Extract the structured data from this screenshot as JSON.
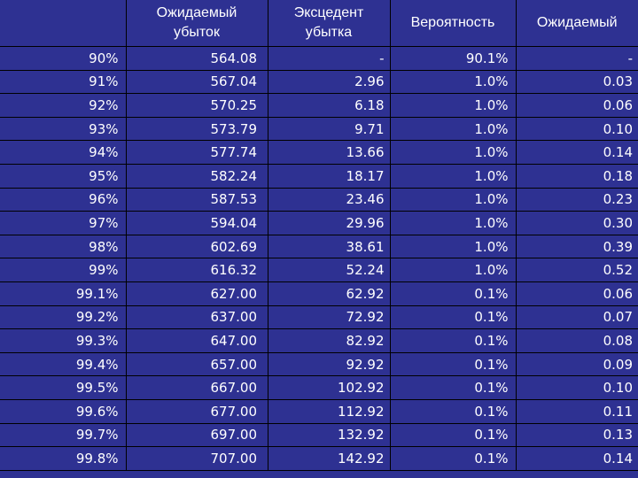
{
  "colors": {
    "background": "#2e3192",
    "text": "#ffffff",
    "grid": "#000000"
  },
  "table": {
    "headers": [
      "",
      "Ожидаемый\nубыток",
      "Эксцедент\nубытка",
      "Вероятность",
      "Ожидаемый"
    ],
    "rows": [
      [
        "90%",
        "564.08",
        "-",
        "90.1%",
        "-"
      ],
      [
        "91%",
        "567.04",
        "2.96",
        "1.0%",
        "0.03"
      ],
      [
        "92%",
        "570.25",
        "6.18",
        "1.0%",
        "0.06"
      ],
      [
        "93%",
        "573.79",
        "9.71",
        "1.0%",
        "0.10"
      ],
      [
        "94%",
        "577.74",
        "13.66",
        "1.0%",
        "0.14"
      ],
      [
        "95%",
        "582.24",
        "18.17",
        "1.0%",
        "0.18"
      ],
      [
        "96%",
        "587.53",
        "23.46",
        "1.0%",
        "0.23"
      ],
      [
        "97%",
        "594.04",
        "29.96",
        "1.0%",
        "0.30"
      ],
      [
        "98%",
        "602.69",
        "38.61",
        "1.0%",
        "0.39"
      ],
      [
        "99%",
        "616.32",
        "52.24",
        "1.0%",
        "0.52"
      ],
      [
        "99.1%",
        "627.00",
        "62.92",
        "0.1%",
        "0.06"
      ],
      [
        "99.2%",
        "637.00",
        "72.92",
        "0.1%",
        "0.07"
      ],
      [
        "99.3%",
        "647.00",
        "82.92",
        "0.1%",
        "0.08"
      ],
      [
        "99.4%",
        "657.00",
        "92.92",
        "0.1%",
        "0.09"
      ],
      [
        "99.5%",
        "667.00",
        "102.92",
        "0.1%",
        "0.10"
      ],
      [
        "99.6%",
        "677.00",
        "112.92",
        "0.1%",
        "0.11"
      ],
      [
        "99.7%",
        "697.00",
        "132.92",
        "0.1%",
        "0.13"
      ],
      [
        "99.8%",
        "707.00",
        "142.92",
        "0.1%",
        "0.14"
      ]
    ]
  }
}
